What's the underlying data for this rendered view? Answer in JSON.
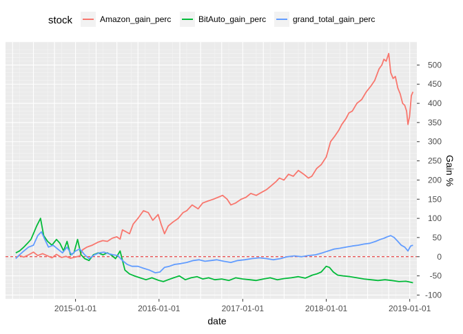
{
  "chart_data": {
    "type": "line",
    "xlabel": "date",
    "ylabel": "Gain %",
    "legend_title": "stock",
    "legend_position": "top",
    "y_axis_side": "right",
    "grid": true,
    "xlim": [
      "2014-03-01",
      "2019-02-01"
    ],
    "ylim": [
      -110,
      560
    ],
    "x_ticks": [
      "2015-01-01",
      "2016-01-01",
      "2017-01-01",
      "2018-01-01",
      "2019-01-01"
    ],
    "y_ticks": [
      -100,
      -50,
      0,
      50,
      100,
      150,
      200,
      250,
      300,
      350,
      400,
      450,
      500
    ],
    "reference_line": {
      "y": 0,
      "color": "#e41a1c",
      "style": "dashed"
    },
    "series": [
      {
        "name": "Amazon_gain_perc",
        "color": "#F8766D",
        "start": "2014-04-15",
        "end": "2019-01-15",
        "x": [
          "2014-04-15",
          "2014-05-01",
          "2014-05-20",
          "2014-06-10",
          "2014-07-01",
          "2014-07-20",
          "2014-08-10",
          "2014-09-01",
          "2014-09-20",
          "2014-10-10",
          "2014-11-01",
          "2014-11-20",
          "2014-12-10",
          "2015-01-01",
          "2015-01-20",
          "2015-02-01",
          "2015-02-20",
          "2015-03-15",
          "2015-04-10",
          "2015-04-30",
          "2015-05-20",
          "2015-06-10",
          "2015-06-30",
          "2015-07-15",
          "2015-07-25",
          "2015-08-10",
          "2015-08-25",
          "2015-09-10",
          "2015-10-01",
          "2015-10-25",
          "2015-11-15",
          "2015-12-05",
          "2015-12-28",
          "2016-01-10",
          "2016-01-25",
          "2016-02-10",
          "2016-03-01",
          "2016-03-25",
          "2016-04-15",
          "2016-05-01",
          "2016-05-25",
          "2016-06-20",
          "2016-07-10",
          "2016-08-01",
          "2016-08-25",
          "2016-09-15",
          "2016-10-05",
          "2016-10-25",
          "2016-11-10",
          "2016-12-01",
          "2016-12-25",
          "2017-01-15",
          "2017-02-05",
          "2017-03-01",
          "2017-03-25",
          "2017-04-15",
          "2017-05-05",
          "2017-05-25",
          "2017-06-10",
          "2017-06-30",
          "2017-07-20",
          "2017-08-10",
          "2017-09-01",
          "2017-09-25",
          "2017-10-15",
          "2017-10-30",
          "2017-11-20",
          "2017-12-10",
          "2018-01-01",
          "2018-01-20",
          "2018-02-08",
          "2018-02-25",
          "2018-03-10",
          "2018-03-28",
          "2018-04-10",
          "2018-04-25",
          "2018-05-15",
          "2018-06-05",
          "2018-06-25",
          "2018-07-15",
          "2018-08-01",
          "2018-08-20",
          "2018-09-01",
          "2018-09-10",
          "2018-09-20",
          "2018-10-01",
          "2018-10-10",
          "2018-10-20",
          "2018-10-30",
          "2018-11-10",
          "2018-11-20",
          "2018-12-01",
          "2018-12-10",
          "2018-12-18",
          "2018-12-24",
          "2018-12-31",
          "2019-01-08",
          "2019-01-15"
        ],
        "values": [
          -3,
          3,
          -1,
          5,
          12,
          3,
          8,
          2,
          -3,
          6,
          -2,
          1,
          -4,
          -1,
          2,
          18,
          25,
          30,
          38,
          42,
          40,
          48,
          52,
          46,
          70,
          65,
          60,
          85,
          100,
          120,
          115,
          95,
          110,
          85,
          60,
          80,
          90,
          100,
          115,
          120,
          135,
          125,
          140,
          145,
          150,
          155,
          160,
          150,
          135,
          140,
          150,
          155,
          165,
          160,
          168,
          175,
          185,
          195,
          205,
          200,
          215,
          210,
          225,
          215,
          205,
          210,
          230,
          240,
          260,
          300,
          315,
          330,
          345,
          360,
          375,
          380,
          400,
          410,
          430,
          445,
          460,
          490,
          500,
          515,
          510,
          530,
          480,
          465,
          470,
          440,
          425,
          400,
          395,
          380,
          345,
          365,
          420,
          430
        ]
      },
      {
        "name": "BitAuto_gain_perc",
        "color": "#00BA38",
        "start": "2014-04-15",
        "end": "2019-01-15",
        "x": [
          "2014-04-15",
          "2014-05-01",
          "2014-05-20",
          "2014-06-05",
          "2014-06-20",
          "2014-07-01",
          "2014-07-15",
          "2014-08-01",
          "2014-08-15",
          "2014-09-01",
          "2014-09-20",
          "2014-10-10",
          "2014-10-25",
          "2014-11-10",
          "2014-11-25",
          "2014-12-10",
          "2014-12-25",
          "2015-01-10",
          "2015-01-25",
          "2015-02-10",
          "2015-03-01",
          "2015-03-20",
          "2015-04-10",
          "2015-05-01",
          "2015-05-20",
          "2015-06-05",
          "2015-06-25",
          "2015-07-15",
          "2015-08-05",
          "2015-08-25",
          "2015-09-15",
          "2015-10-10",
          "2015-11-05",
          "2015-12-01",
          "2016-01-01",
          "2016-01-20",
          "2016-02-10",
          "2016-03-05",
          "2016-03-30",
          "2016-04-25",
          "2016-05-20",
          "2016-06-15",
          "2016-07-10",
          "2016-08-05",
          "2016-09-01",
          "2016-10-01",
          "2016-11-01",
          "2016-12-01",
          "2017-01-01",
          "2017-02-01",
          "2017-03-01",
          "2017-04-01",
          "2017-05-01",
          "2017-06-01",
          "2017-07-01",
          "2017-08-01",
          "2017-09-01",
          "2017-10-01",
          "2017-11-01",
          "2017-11-20",
          "2017-12-10",
          "2018-01-01",
          "2018-01-15",
          "2018-02-01",
          "2018-02-20",
          "2018-03-15",
          "2018-04-15",
          "2018-05-15",
          "2018-06-15",
          "2018-07-15",
          "2018-08-15",
          "2018-09-15",
          "2018-10-15",
          "2018-11-15",
          "2018-12-15",
          "2019-01-01",
          "2019-01-15"
        ],
        "values": [
          10,
          15,
          25,
          35,
          45,
          60,
          80,
          100,
          55,
          40,
          30,
          45,
          35,
          15,
          40,
          5,
          10,
          45,
          5,
          -5,
          -10,
          5,
          10,
          5,
          10,
          5,
          -5,
          15,
          -35,
          -45,
          -50,
          -55,
          -60,
          -55,
          -62,
          -65,
          -60,
          -55,
          -50,
          -60,
          -55,
          -52,
          -58,
          -55,
          -60,
          -58,
          -62,
          -55,
          -58,
          -60,
          -62,
          -58,
          -55,
          -60,
          -57,
          -55,
          -52,
          -56,
          -48,
          -45,
          -40,
          -25,
          -28,
          -40,
          -48,
          -50,
          -52,
          -55,
          -58,
          -60,
          -62,
          -60,
          -62,
          -65,
          -64,
          -66,
          -68
        ]
      },
      {
        "name": "grand_total_gain_perc",
        "color": "#619CFF",
        "start": "2014-04-15",
        "end": "2019-01-15",
        "x": [
          "2014-04-15",
          "2014-05-01",
          "2014-05-20",
          "2014-06-10",
          "2014-07-01",
          "2014-07-20",
          "2014-08-05",
          "2014-08-20",
          "2014-09-05",
          "2014-09-25",
          "2014-10-15",
          "2014-11-05",
          "2014-11-25",
          "2014-12-15",
          "2015-01-01",
          "2015-01-20",
          "2015-02-10",
          "2015-03-01",
          "2015-03-25",
          "2015-04-15",
          "2015-05-05",
          "2015-05-25",
          "2015-06-15",
          "2015-07-05",
          "2015-07-25",
          "2015-08-15",
          "2015-09-05",
          "2015-10-01",
          "2015-10-25",
          "2015-11-20",
          "2015-12-15",
          "2016-01-05",
          "2016-01-25",
          "2016-02-15",
          "2016-03-10",
          "2016-04-05",
          "2016-05-01",
          "2016-05-30",
          "2016-06-25",
          "2016-07-20",
          "2016-08-15",
          "2016-09-10",
          "2016-10-10",
          "2016-11-10",
          "2016-12-10",
          "2017-01-10",
          "2017-02-10",
          "2017-03-15",
          "2017-04-15",
          "2017-05-15",
          "2017-06-15",
          "2017-07-15",
          "2017-08-15",
          "2017-09-15",
          "2017-10-15",
          "2017-11-15",
          "2017-12-15",
          "2018-01-10",
          "2018-02-05",
          "2018-03-01",
          "2018-03-30",
          "2018-04-25",
          "2018-05-20",
          "2018-06-15",
          "2018-07-10",
          "2018-08-05",
          "2018-08-25",
          "2018-09-10",
          "2018-09-25",
          "2018-10-10",
          "2018-10-25",
          "2018-11-10",
          "2018-11-25",
          "2018-12-10",
          "2018-12-24",
          "2019-01-05",
          "2019-01-15"
        ],
        "values": [
          -5,
          5,
          15,
          25,
          30,
          55,
          65,
          45,
          25,
          30,
          20,
          10,
          25,
          5,
          15,
          20,
          5,
          -5,
          5,
          10,
          12,
          8,
          5,
          3,
          -10,
          -20,
          -25,
          -25,
          -30,
          -35,
          -42,
          -40,
          -28,
          -25,
          -20,
          -18,
          -15,
          -10,
          -8,
          -12,
          -10,
          -8,
          -12,
          -15,
          -10,
          -8,
          -5,
          -3,
          -5,
          -8,
          -5,
          0,
          2,
          0,
          3,
          5,
          10,
          15,
          20,
          22,
          25,
          28,
          30,
          33,
          35,
          40,
          45,
          48,
          52,
          55,
          50,
          40,
          30,
          25,
          15,
          28,
          30
        ]
      }
    ]
  }
}
